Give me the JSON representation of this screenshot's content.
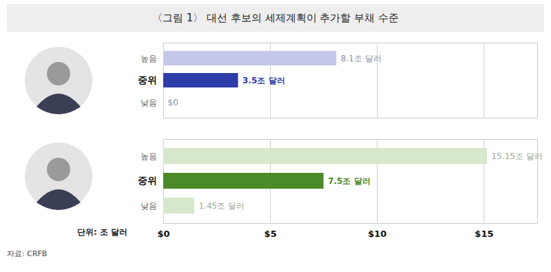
{
  "title": "〈그림 1〉 대선 후보의 세제계획이 추가할 부채 수준",
  "source": "자료: CRFB",
  "chart_data": [
    {
      "type": "bar",
      "orientation": "horizontal",
      "categories": [
        "높음",
        "중위",
        "낮음"
      ],
      "values": [
        8.1,
        3.5,
        0
      ],
      "value_labels": [
        "8.1조 달러",
        "3.5조 달러",
        "$0"
      ],
      "colors": [
        "#c3c8ea",
        "#2c3ca8",
        "#c3c8ea"
      ],
      "xlim": [
        0,
        17.5
      ],
      "xticks": [
        {
          "value": 0,
          "label": "$0"
        },
        {
          "value": 5,
          "label": "$5"
        },
        {
          "value": 10,
          "label": "$10"
        },
        {
          "value": 15,
          "label": "$15"
        }
      ],
      "grid": true,
      "data_labels": true,
      "tick_labels": "y"
    },
    {
      "type": "bar",
      "orientation": "horizontal",
      "categories": [
        "높음",
        "중위",
        "낮음"
      ],
      "values": [
        15.15,
        7.5,
        1.45
      ],
      "value_labels": [
        "15.15조 달러",
        "7.5조 달러",
        "1.45조 달러"
      ],
      "colors": [
        "#d6e8cc",
        "#4a8a28",
        "#d6e8cc"
      ],
      "xlim": [
        0,
        17.5
      ],
      "xticks": [
        {
          "value": 0,
          "label": "$0"
        },
        {
          "value": 5,
          "label": "$5"
        },
        {
          "value": 10,
          "label": "$10"
        },
        {
          "value": 15,
          "label": "$15"
        }
      ],
      "x_label": "단위: 조 달러",
      "grid": true,
      "data_labels": true
    }
  ]
}
